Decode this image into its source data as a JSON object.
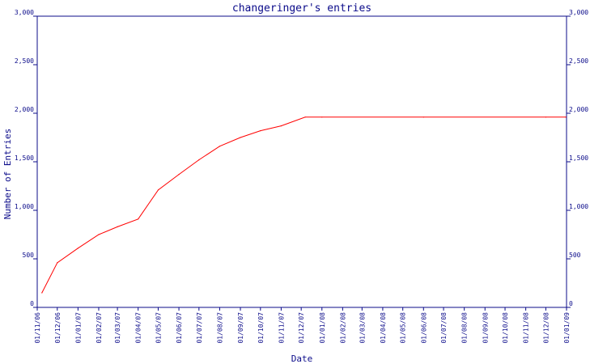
{
  "colors": {
    "axis": "#0b0b8a",
    "line": "#ff0000",
    "background": "#ffffff"
  },
  "chart_data": {
    "type": "line",
    "title": "changeringer's entries",
    "xlabel": "Date",
    "ylabel": "Number of Entries",
    "ylim": [
      0,
      3000
    ],
    "yticks": [
      "0",
      "500",
      "1,000",
      "1,500",
      "2,000",
      "2,500",
      "3,000"
    ],
    "ytick_values": [
      0,
      500,
      1000,
      1500,
      2000,
      2500,
      3000
    ],
    "grid": false,
    "legend": "none",
    "xlim": [
      "2006-11-01",
      "2009-01-01"
    ],
    "xticks": [
      "01/11/06",
      "01/12/06",
      "01/01/07",
      "01/02/07",
      "01/03/07",
      "01/04/07",
      "01/05/07",
      "01/06/07",
      "01/07/07",
      "01/08/07",
      "01/09/07",
      "01/10/07",
      "01/11/07",
      "01/12/07",
      "01/01/08",
      "01/02/08",
      "01/03/08",
      "01/04/08",
      "01/05/08",
      "01/06/08",
      "01/07/08",
      "01/08/08",
      "01/09/08",
      "01/10/08",
      "01/11/08",
      "01/12/08",
      "01/01/09"
    ],
    "series": [
      {
        "x": [
          "2006-11-08",
          "2006-12-01",
          "2007-01-01",
          "2007-02-01",
          "2007-03-01",
          "2007-04-01",
          "2007-05-01",
          "2007-06-01",
          "2007-07-01",
          "2007-08-01",
          "2007-09-01",
          "2007-10-01",
          "2007-11-01",
          "2007-12-07",
          "2008-01-01",
          "2008-06-01",
          "2008-12-01",
          "2008-12-31"
        ],
        "y": [
          150,
          460,
          610,
          750,
          830,
          910,
          1210,
          1370,
          1520,
          1660,
          1750,
          1820,
          1870,
          1960,
          1960,
          1960,
          1960,
          1960
        ]
      }
    ]
  }
}
